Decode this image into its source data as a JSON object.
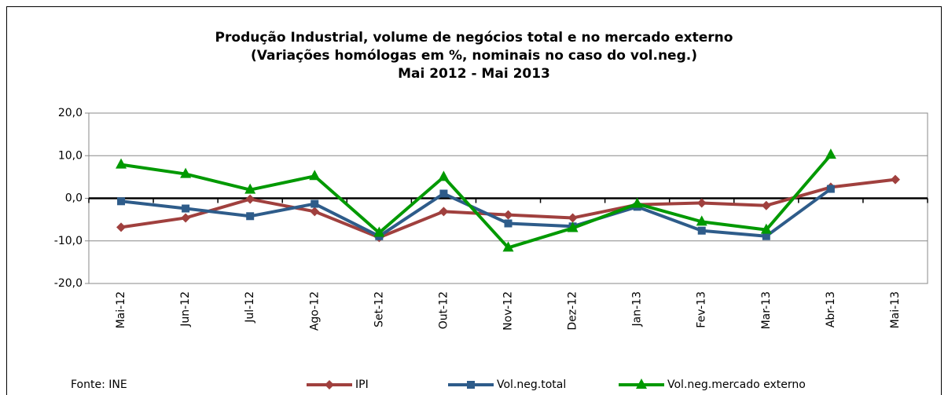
{
  "chart_data": {
    "type": "line",
    "title": [
      "Produção Industrial, volume de negócios total e no mercado externo",
      "(Variações homólogas em %, nominais no caso do vol.neg.)",
      "Mai 2012 - Mai 2013"
    ],
    "source": "Fonte: INE",
    "categories": [
      "Mai-12",
      "Jun-12",
      "Jul-12",
      "Ago-12",
      "Set-12",
      "Out-12",
      "Nov-12",
      "Dez-12",
      "Jan-13",
      "Fev-13",
      "Mar-13",
      "Abr-13",
      "Mai-13"
    ],
    "series": [
      {
        "name": "IPI",
        "color": "#a0403e",
        "marker": "diamond",
        "values": [
          -6.8,
          -4.6,
          -0.2,
          -3.1,
          -9.2,
          -3.1,
          -3.9,
          -4.6,
          -1.5,
          -1.1,
          -1.7,
          2.6,
          4.4
        ]
      },
      {
        "name": "Vol.neg.total",
        "color": "#2e5c8a",
        "marker": "square",
        "values": [
          -0.7,
          -2.4,
          -4.2,
          -1.3,
          -8.9,
          1.1,
          -5.9,
          -6.6,
          -2.0,
          -7.6,
          -8.9,
          2.2,
          null
        ]
      },
      {
        "name": "Vol.neg.mercado externo",
        "color": "#009900",
        "marker": "triangle",
        "values": [
          7.9,
          5.7,
          2.0,
          5.2,
          -8.1,
          5.0,
          -11.6,
          -7.0,
          -1.3,
          -5.5,
          -7.4,
          10.2,
          null
        ]
      }
    ],
    "ylim": [
      -20,
      20
    ],
    "yticks": [
      {
        "value": -20,
        "label": "-20,0"
      },
      {
        "value": -10,
        "label": "-10,0"
      },
      {
        "value": 0,
        "label": "0,0"
      },
      {
        "value": 10,
        "label": "10,0"
      },
      {
        "value": 20,
        "label": "20,0"
      }
    ],
    "grid": true,
    "legend": "bottom"
  }
}
